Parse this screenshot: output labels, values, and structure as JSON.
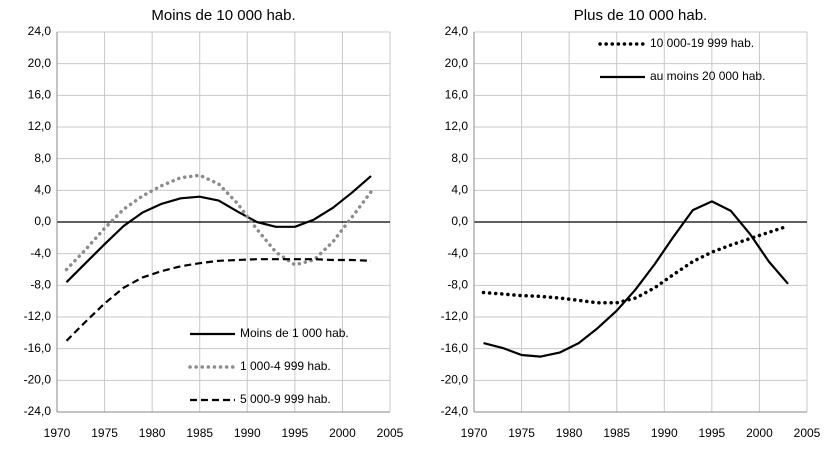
{
  "chart_data": [
    {
      "type": "line",
      "title": "Moins de 10 000 hab.",
      "x": [
        1971,
        1973,
        1975,
        1977,
        1979,
        1981,
        1983,
        1985,
        1987,
        1989,
        1991,
        1993,
        1995,
        1997,
        1999,
        2001,
        2003
      ],
      "series": [
        {
          "name": "Moins de 1 000 hab.",
          "color": "#000000",
          "dash": "solid",
          "values": [
            -7.6,
            -5.2,
            -2.8,
            -0.5,
            1.2,
            2.3,
            3.0,
            3.2,
            2.7,
            1.3,
            0.0,
            -0.6,
            -0.6,
            0.3,
            1.8,
            3.7,
            5.8
          ]
        },
        {
          "name": "1 000-4 999 hab.",
          "color": "#8c8c8c",
          "dash": "dotted",
          "values": [
            -6.0,
            -3.5,
            -0.8,
            1.6,
            3.3,
            4.6,
            5.6,
            5.9,
            4.8,
            2.3,
            -0.9,
            -3.8,
            -5.4,
            -4.8,
            -2.5,
            0.6,
            3.8
          ]
        },
        {
          "name": "5 000-9 999 hab.",
          "color": "#000000",
          "dash": "dashed",
          "values": [
            -15.0,
            -12.6,
            -10.3,
            -8.3,
            -7.0,
            -6.2,
            -5.6,
            -5.2,
            -4.9,
            -4.8,
            -4.7,
            -4.7,
            -4.7,
            -4.7,
            -4.8,
            -4.8,
            -4.9
          ]
        }
      ],
      "xlim": [
        1970,
        2005
      ],
      "xticks": [
        1970,
        1975,
        1980,
        1985,
        1990,
        1995,
        2000,
        2005
      ],
      "ylim": [
        -24,
        24
      ],
      "yticks": [
        {
          "value": 24,
          "label": "24,0"
        },
        {
          "value": 20,
          "label": "20,0"
        },
        {
          "value": 16,
          "label": "16,0"
        },
        {
          "value": 12,
          "label": "12,0"
        },
        {
          "value": 8,
          "label": "8,0"
        },
        {
          "value": 4,
          "label": "4,0"
        },
        {
          "value": 0,
          "label": "0,0"
        },
        {
          "value": -4,
          "label": "-4,0"
        },
        {
          "value": -8,
          "label": "-8,0"
        },
        {
          "value": -12,
          "label": "-12,0"
        },
        {
          "value": -16,
          "label": "-16,0"
        },
        {
          "value": -20,
          "label": "-20,0"
        },
        {
          "value": -24,
          "label": "-24,0"
        }
      ],
      "grid": true,
      "legend": "lower right"
    },
    {
      "type": "line",
      "title": "Plus de 10 000 hab.",
      "x": [
        1971,
        1973,
        1975,
        1977,
        1979,
        1981,
        1983,
        1985,
        1987,
        1989,
        1991,
        1993,
        1995,
        1997,
        1999,
        2001,
        2003
      ],
      "series": [
        {
          "name": "10 000-19 999 hab.",
          "color": "#000000",
          "dash": "dotted",
          "values": [
            -8.9,
            -9.1,
            -9.3,
            -9.4,
            -9.6,
            -9.9,
            -10.2,
            -10.2,
            -9.6,
            -8.3,
            -6.6,
            -5.0,
            -3.8,
            -2.9,
            -2.1,
            -1.3,
            -0.5
          ]
        },
        {
          "name": "au moins 20 000 hab.",
          "color": "#000000",
          "dash": "solid",
          "values": [
            -15.3,
            -15.9,
            -16.8,
            -17.0,
            -16.5,
            -15.3,
            -13.4,
            -11.2,
            -8.5,
            -5.3,
            -1.8,
            1.5,
            2.6,
            1.4,
            -1.5,
            -5.0,
            -7.8
          ]
        }
      ],
      "xlim": [
        1970,
        2005
      ],
      "xticks": [
        1970,
        1975,
        1980,
        1985,
        1990,
        1995,
        2000,
        2005
      ],
      "ylim": [
        -24,
        24
      ],
      "yticks": [
        {
          "value": 24,
          "label": "24,0"
        },
        {
          "value": 20,
          "label": "20,0"
        },
        {
          "value": 16,
          "label": "16,0"
        },
        {
          "value": 12,
          "label": "12,0"
        },
        {
          "value": 8,
          "label": "8,0"
        },
        {
          "value": 4,
          "label": "4,0"
        },
        {
          "value": 0,
          "label": "0,0"
        },
        {
          "value": -4,
          "label": "-4,0"
        },
        {
          "value": -8,
          "label": "-8,0"
        },
        {
          "value": -12,
          "label": "-12,0"
        },
        {
          "value": -16,
          "label": "-16,0"
        },
        {
          "value": -20,
          "label": "-20,0"
        },
        {
          "value": -24,
          "label": "-24,0"
        }
      ],
      "grid": true,
      "legend": "upper right"
    }
  ]
}
